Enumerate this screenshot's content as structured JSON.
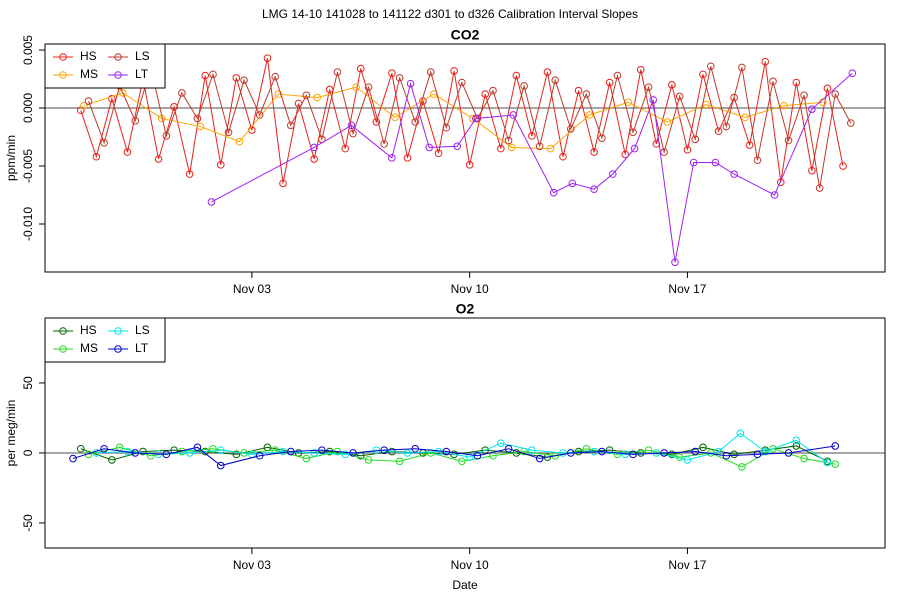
{
  "title": "LMG  14-10    141028 to 141122    d301 to d326   Calibration Interval Slopes",
  "chart_data": [
    {
      "type": "line",
      "title": "CO2",
      "ylabel": "ppm/min",
      "legend": "top-left",
      "hline": 0,
      "xlim": [
        300.35,
        327.35
      ],
      "ylim": [
        -0.01414,
        0.00552
      ],
      "xticks": [
        {
          "value": 307,
          "label": "Nov 03"
        },
        {
          "value": 314,
          "label": "Nov 10"
        },
        {
          "value": 321,
          "label": "Nov 17"
        }
      ],
      "yticks": [
        {
          "value": -0.01,
          "label": "-0.010"
        },
        -0.005,
        {
          "value": 0,
          "label": "0.000"
        },
        0.005
      ],
      "series": [
        {
          "name": "HS",
          "color": "#e8211a",
          "x": [
            301.5,
            302,
            302.5,
            303,
            303.5,
            304,
            304.5,
            305,
            305.5,
            306,
            306.5,
            307,
            307.5,
            308,
            308.5,
            309,
            309.5,
            310,
            310.5,
            311,
            311.5,
            312,
            312.5,
            313,
            313.5,
            314,
            314.5,
            315,
            315.5,
            316,
            316.5,
            317,
            317.5,
            318,
            318.5,
            319,
            319.5,
            320,
            320.5,
            321,
            321.5,
            322,
            322.5,
            323,
            323.5,
            324,
            324.5,
            325,
            325.5,
            326
          ],
          "values": [
            -0.0002,
            -0.0042,
            0.0008,
            -0.0038,
            0.0025,
            -0.0044,
            0.0001,
            -0.0057,
            0.0028,
            -0.0049,
            0.0026,
            -0.0019,
            0.0043,
            -0.0065,
            0.0004,
            -0.0044,
            0.0016,
            -0.0035,
            0.0034,
            -0.0012,
            0.003,
            -0.0043,
            0.0006,
            -0.0039,
            0.0032,
            -0.0049,
            0.0012,
            -0.0035,
            0.0028,
            -0.0024,
            0.0031,
            -0.0042,
            0.0015,
            -0.0038,
            0.0022,
            -0.004,
            0.0033,
            -0.0031,
            0.002,
            -0.0036,
            0.0029,
            -0.002,
            0.0009,
            -0.0032,
            0.004,
            -0.0064,
            0.0022,
            -0.0054,
            0.0017,
            -0.005
          ]
        },
        {
          "name": "MS",
          "color": "#ffa500",
          "x": [
            301.6,
            302.85,
            304.1,
            305.35,
            306.6,
            307.85,
            309.1,
            310.35,
            311.6,
            312.85,
            314.1,
            315.35,
            316.6,
            317.85,
            319.1,
            320.35,
            321.6,
            322.85,
            324.1,
            325.35
          ],
          "values": [
            0.0002,
            0.0013,
            -0.0009,
            -0.0016,
            -0.0029,
            0.0012,
            0.0009,
            0.0018,
            -0.0008,
            0.0012,
            -0.0009,
            -0.0034,
            -0.0035,
            -0.0006,
            0.0005,
            -0.0012,
            0.0003,
            -0.0008,
            0.0002,
            0.0005
          ]
        },
        {
          "name": "LS",
          "color": "#c0392b",
          "x": [
            301.75,
            302.25,
            302.75,
            303.25,
            303.75,
            304.25,
            304.75,
            305.25,
            305.75,
            306.25,
            306.75,
            307.25,
            307.75,
            308.25,
            308.75,
            309.25,
            309.75,
            310.25,
            310.75,
            311.25,
            311.75,
            312.25,
            312.75,
            313.25,
            313.75,
            314.25,
            314.75,
            315.25,
            315.75,
            316.25,
            316.75,
            317.25,
            317.75,
            318.25,
            318.75,
            319.25,
            319.75,
            320.25,
            320.75,
            321.25,
            321.75,
            322.25,
            322.75,
            323.25,
            323.75,
            324.25,
            324.75,
            325.25,
            325.75,
            326.25
          ],
          "values": [
            0.0006,
            -0.003,
            0.0019,
            -0.0011,
            0.0035,
            -0.0024,
            0.0013,
            -0.0009,
            0.0029,
            -0.0021,
            0.0024,
            -0.0006,
            0.0027,
            -0.0015,
            0.0011,
            -0.0027,
            0.0031,
            -0.0022,
            0.0018,
            -0.0031,
            0.0026,
            -0.0012,
            0.0031,
            -0.0017,
            0.0022,
            -0.0009,
            0.0015,
            -0.0028,
            0.0019,
            -0.0033,
            0.0024,
            -0.0018,
            0.0012,
            -0.0026,
            0.0028,
            -0.0021,
            0.0018,
            -0.0038,
            0.001,
            -0.0027,
            0.0036,
            -0.0016,
            0.0035,
            -0.0045,
            0.0023,
            -0.0028,
            0.0011,
            -0.0069,
            0.0012,
            -0.0013
          ]
        },
        {
          "name": "LT",
          "color": "#a020f0",
          "x": [
            305.7,
            309.0,
            310.2,
            311.5,
            312.1,
            312.7,
            313.6,
            314.2,
            315.4,
            316.7,
            317.3,
            318.0,
            318.6,
            319.3,
            319.9,
            320.6,
            321.2,
            321.9,
            322.5,
            323.8,
            325.0,
            326.3
          ],
          "values": [
            -0.0081,
            -0.0034,
            -0.0015,
            -0.0043,
            0.0021,
            -0.0034,
            -0.0033,
            -0.0009,
            -0.0006,
            -0.0073,
            -0.0065,
            -0.007,
            -0.0057,
            -0.0035,
            0.0007,
            -0.0133,
            -0.0047,
            -0.0047,
            -0.0057,
            -0.0075,
            -0.0001,
            0.003
          ]
        }
      ]
    },
    {
      "type": "line",
      "title": "O2",
      "ylabel": "per meg/min",
      "xlabel": "Date",
      "legend": "top-left",
      "hline": 0,
      "xlim": [
        300.35,
        327.35
      ],
      "ylim": [
        -67.9,
        96.4
      ],
      "xticks": [
        {
          "value": 307,
          "label": "Nov 03"
        },
        {
          "value": 314,
          "label": "Nov 10"
        },
        {
          "value": 321,
          "label": "Nov 17"
        }
      ],
      "yticks": [
        -50,
        0,
        50
      ],
      "series": [
        {
          "name": "HS",
          "color": "#006400",
          "x": [
            301.5,
            302.5,
            303.5,
            304.5,
            305.5,
            306.5,
            307.5,
            308.5,
            309.5,
            310.5,
            311.5,
            312.5,
            313.5,
            314.5,
            315.5,
            316.5,
            317.5,
            318.5,
            319.5,
            320.5,
            321.5,
            322.5,
            323.5,
            324.5,
            325.5
          ],
          "values": [
            3,
            -5,
            1,
            2,
            1,
            -1,
            4,
            0,
            1,
            -2,
            1,
            0,
            -1,
            2,
            0,
            -3,
            1,
            2,
            0,
            -1,
            4,
            -1,
            2,
            5,
            -6
          ]
        },
        {
          "name": "MS",
          "color": "#22dd22",
          "x": [
            301.75,
            302.75,
            303.75,
            304.75,
            305.75,
            306.75,
            307.75,
            308.75,
            309.75,
            310.75,
            311.75,
            312.75,
            313.75,
            314.75,
            315.75,
            316.75,
            317.75,
            318.75,
            319.75,
            320.75,
            321.75,
            322.75,
            323.75,
            324.75,
            325.75
          ],
          "values": [
            -1,
            4,
            -2,
            1,
            3,
            0,
            2,
            -4,
            1,
            -5,
            -6,
            0,
            -6,
            -2,
            1,
            -2,
            3,
            -1,
            2,
            -3,
            0,
            -10,
            3,
            -4,
            -8
          ]
        },
        {
          "name": "LS",
          "color": "#00e5ee",
          "x": [
            302.0,
            303.0,
            304.0,
            305.0,
            306.0,
            307.0,
            308.0,
            309.0,
            310.0,
            311.0,
            312.0,
            313.0,
            314.0,
            315.0,
            316.0,
            317.0,
            318.0,
            319.0,
            320.0,
            321.0,
            322.0,
            322.7,
            323.5,
            324.5,
            325.5
          ],
          "values": [
            0,
            1,
            -1,
            0,
            2,
            -1,
            1,
            0,
            -1,
            2,
            0,
            1,
            -3,
            7,
            2,
            0,
            1,
            -1,
            0,
            -5,
            1,
            14,
            1,
            9,
            -7
          ]
        },
        {
          "name": "LT",
          "color": "#0000cd",
          "x": [
            301.25,
            302.25,
            303.25,
            304.25,
            305.25,
            306.0,
            307.25,
            308.25,
            309.25,
            310.25,
            311.25,
            312.25,
            313.25,
            314.25,
            315.25,
            316.25,
            317.25,
            318.25,
            319.25,
            320.25,
            321.25,
            322.25,
            323.25,
            324.25,
            325.75
          ],
          "values": [
            -4,
            3,
            0,
            -1,
            4,
            -9,
            -2,
            1,
            2,
            0,
            2,
            3,
            1,
            -2,
            3,
            -4,
            0,
            1,
            -1,
            0,
            1,
            -2,
            -1,
            0,
            5
          ]
        }
      ]
    }
  ]
}
